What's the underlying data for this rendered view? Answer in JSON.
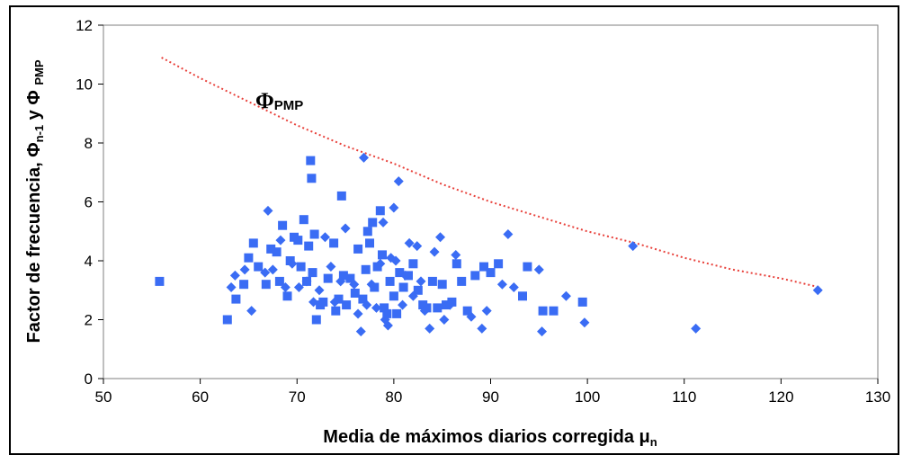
{
  "chart_data": {
    "type": "scatter",
    "xlabel": "Media de máximos diarios corregida μ",
    "xlabel_sub": "n",
    "ylabel": "Factor de frecuencia, Φ",
    "ylabel_parts": [
      "n-1",
      " y Φ ",
      "PMP"
    ],
    "xlim": [
      50,
      130
    ],
    "ylim": [
      0,
      12
    ],
    "x_ticks": [
      50,
      60,
      70,
      80,
      90,
      100,
      110,
      120,
      130
    ],
    "y_ticks": [
      0,
      2,
      4,
      6,
      8,
      10,
      12
    ],
    "grid": false,
    "annotation": {
      "symbol": "Φ",
      "subscript": "PMP"
    },
    "envelope": {
      "color": "#e8403a",
      "x": [
        56,
        60,
        65,
        70,
        75,
        80,
        85,
        90,
        95,
        100,
        105,
        110,
        115,
        120,
        124
      ],
      "y": [
        10.9,
        10.2,
        9.4,
        8.6,
        7.9,
        7.3,
        6.6,
        6.0,
        5.5,
        5.0,
        4.6,
        4.1,
        3.7,
        3.4,
        3.1
      ]
    },
    "series": [
      {
        "marker": "square",
        "color": "#3a6cf4",
        "points": [
          [
            55.8,
            3.3
          ],
          [
            62.8,
            2.0
          ],
          [
            63.7,
            2.7
          ],
          [
            64.5,
            3.2
          ],
          [
            65.0,
            4.1
          ],
          [
            65.5,
            4.6
          ],
          [
            66.0,
            3.8
          ],
          [
            66.8,
            3.2
          ],
          [
            67.3,
            4.4
          ],
          [
            67.9,
            4.3
          ],
          [
            68.2,
            3.3
          ],
          [
            68.5,
            5.2
          ],
          [
            69.0,
            2.8
          ],
          [
            69.3,
            4.0
          ],
          [
            69.7,
            4.8
          ],
          [
            70.1,
            4.7
          ],
          [
            70.4,
            3.8
          ],
          [
            70.7,
            5.4
          ],
          [
            71.0,
            3.3
          ],
          [
            71.2,
            4.5
          ],
          [
            71.4,
            7.4
          ],
          [
            71.5,
            6.8
          ],
          [
            71.6,
            3.6
          ],
          [
            71.8,
            4.9
          ],
          [
            72.0,
            2.0
          ],
          [
            72.4,
            2.5
          ],
          [
            72.7,
            2.6
          ],
          [
            73.2,
            3.4
          ],
          [
            73.8,
            4.6
          ],
          [
            74.0,
            2.3
          ],
          [
            74.3,
            2.7
          ],
          [
            74.6,
            6.2
          ],
          [
            74.8,
            3.5
          ],
          [
            75.1,
            2.5
          ],
          [
            75.5,
            3.4
          ],
          [
            76.0,
            2.9
          ],
          [
            76.3,
            4.4
          ],
          [
            76.8,
            2.7
          ],
          [
            77.1,
            3.7
          ],
          [
            77.3,
            5.0
          ],
          [
            77.5,
            4.6
          ],
          [
            77.8,
            5.3
          ],
          [
            78.0,
            3.1
          ],
          [
            78.3,
            3.8
          ],
          [
            78.6,
            5.7
          ],
          [
            78.8,
            4.2
          ],
          [
            79.0,
            2.4
          ],
          [
            79.3,
            2.2
          ],
          [
            79.6,
            3.3
          ],
          [
            80.0,
            2.8
          ],
          [
            80.3,
            2.2
          ],
          [
            80.6,
            3.6
          ],
          [
            81.0,
            3.1
          ],
          [
            81.5,
            3.5
          ],
          [
            82.0,
            3.9
          ],
          [
            82.5,
            3.0
          ],
          [
            83.0,
            2.5
          ],
          [
            83.4,
            2.4
          ],
          [
            84.0,
            3.3
          ],
          [
            84.5,
            2.4
          ],
          [
            85.0,
            3.2
          ],
          [
            85.4,
            2.5
          ],
          [
            86.0,
            2.6
          ],
          [
            86.5,
            3.9
          ],
          [
            87.0,
            3.3
          ],
          [
            87.6,
            2.3
          ],
          [
            88.4,
            3.5
          ],
          [
            89.3,
            3.8
          ],
          [
            90.0,
            3.6
          ],
          [
            90.8,
            3.9
          ],
          [
            93.3,
            2.8
          ],
          [
            93.8,
            3.8
          ],
          [
            95.4,
            2.3
          ],
          [
            96.5,
            2.3
          ],
          [
            99.5,
            2.6
          ]
        ]
      },
      {
        "marker": "diamond",
        "color": "#3a6cf4",
        "points": [
          [
            63.2,
            3.1
          ],
          [
            63.6,
            3.5
          ],
          [
            64.6,
            3.7
          ],
          [
            65.3,
            2.3
          ],
          [
            66.7,
            3.6
          ],
          [
            67.0,
            5.7
          ],
          [
            67.5,
            3.7
          ],
          [
            68.3,
            4.7
          ],
          [
            68.8,
            3.1
          ],
          [
            69.5,
            3.9
          ],
          [
            70.2,
            3.1
          ],
          [
            71.0,
            3.3
          ],
          [
            71.7,
            2.6
          ],
          [
            72.3,
            3.0
          ],
          [
            72.9,
            4.8
          ],
          [
            73.5,
            3.8
          ],
          [
            73.9,
            2.6
          ],
          [
            74.5,
            3.3
          ],
          [
            75.0,
            5.1
          ],
          [
            75.9,
            3.2
          ],
          [
            76.3,
            2.2
          ],
          [
            76.6,
            1.6
          ],
          [
            76.9,
            7.5
          ],
          [
            77.2,
            2.5
          ],
          [
            77.7,
            3.2
          ],
          [
            78.2,
            2.4
          ],
          [
            78.6,
            3.9
          ],
          [
            78.9,
            5.3
          ],
          [
            79.1,
            2.0
          ],
          [
            79.4,
            1.8
          ],
          [
            79.7,
            4.1
          ],
          [
            80.0,
            5.8
          ],
          [
            80.2,
            4.0
          ],
          [
            80.5,
            6.7
          ],
          [
            80.9,
            2.5
          ],
          [
            81.2,
            3.5
          ],
          [
            81.6,
            4.6
          ],
          [
            82.0,
            2.8
          ],
          [
            82.4,
            4.5
          ],
          [
            82.8,
            3.3
          ],
          [
            83.2,
            2.3
          ],
          [
            83.7,
            1.7
          ],
          [
            84.2,
            4.3
          ],
          [
            84.8,
            4.8
          ],
          [
            85.2,
            2.0
          ],
          [
            85.8,
            2.5
          ],
          [
            86.4,
            4.2
          ],
          [
            88.0,
            2.1
          ],
          [
            89.1,
            1.7
          ],
          [
            89.6,
            2.3
          ],
          [
            91.2,
            3.2
          ],
          [
            91.8,
            4.9
          ],
          [
            92.4,
            3.1
          ],
          [
            95.0,
            3.7
          ],
          [
            95.3,
            1.6
          ],
          [
            97.8,
            2.8
          ],
          [
            99.7,
            1.9
          ],
          [
            104.7,
            4.5
          ],
          [
            111.2,
            1.7
          ],
          [
            123.8,
            3.0
          ]
        ]
      }
    ]
  }
}
